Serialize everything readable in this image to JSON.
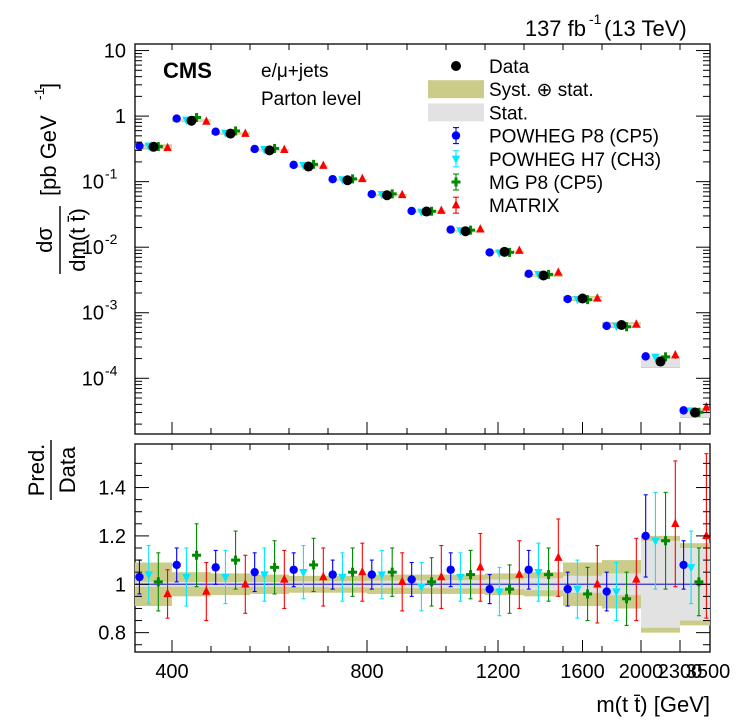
{
  "header": {
    "lumi": "137 fb",
    "lumi_exp": "-1",
    "energy": " (13 TeV)"
  },
  "labels": {
    "cms": "CMS",
    "channel": "e/μ+jets",
    "level": "Parton level",
    "yaxis_top_num": "dσ",
    "yaxis_top_den": "dm(t t̄)",
    "yaxis_top_unit_a": "[pb GeV",
    "yaxis_top_unit_exp": "-1",
    "yaxis_top_unit_b": "]",
    "yaxis_ratio_num": "Pred.",
    "yaxis_ratio_den": "Data",
    "xaxis": "m(t t̄) [GeV]"
  },
  "legend": [
    {
      "label": "Data",
      "marker": "circle",
      "color": "#000000"
    },
    {
      "label": "Syst. ⊕ stat.",
      "marker": "box",
      "color": "#cccc8a"
    },
    {
      "label": "Stat.",
      "marker": "box",
      "color": "#e2e2e2"
    },
    {
      "label": "POWHEG P8 (CP5)",
      "marker": "circle",
      "color": "#0000ff"
    },
    {
      "label": "POWHEG H7 (CH3)",
      "marker": "triangle-down",
      "color": "#00e8ff"
    },
    {
      "label": "MG P8 (CP5)",
      "marker": "cross",
      "color": "#008800"
    },
    {
      "label": "MATRIX",
      "marker": "triangle-up",
      "color": "#ff0000"
    }
  ],
  "chart_data": {
    "type": "scatter",
    "x_ticks": [
      "400",
      "800",
      "1200",
      "1600",
      "2000",
      "2300",
      "3500"
    ],
    "y_ticks_top": [
      {
        "base": "10",
        "exp": "-4"
      },
      {
        "base": "10",
        "exp": "-3"
      },
      {
        "base": "10",
        "exp": "-2"
      },
      {
        "base": "10",
        "exp": "-1"
      },
      {
        "base": "1",
        "exp": ""
      },
      {
        "base": "10",
        "exp": ""
      }
    ],
    "y_ticks_ratio": [
      "0.8",
      "1",
      "1.2",
      "1.4"
    ],
    "ylim_ratio": [
      0.72,
      1.58
    ],
    "ylim_top_log10": [
      -4.85,
      1.1
    ],
    "bins": [
      {
        "lo": 250,
        "hi": 400,
        "data": 0.34,
        "syst": 0.09,
        "stat": 0.01
      },
      {
        "lo": 400,
        "hi": 480,
        "data": 0.85,
        "syst": 0.05,
        "stat": 0.01
      },
      {
        "lo": 480,
        "hi": 560,
        "data": 0.54,
        "syst": 0.045,
        "stat": 0.01
      },
      {
        "lo": 560,
        "hi": 640,
        "data": 0.3,
        "syst": 0.04,
        "stat": 0.01
      },
      {
        "lo": 640,
        "hi": 720,
        "data": 0.17,
        "syst": 0.035,
        "stat": 0.012
      },
      {
        "lo": 720,
        "hi": 800,
        "data": 0.105,
        "syst": 0.035,
        "stat": 0.013
      },
      {
        "lo": 800,
        "hi": 900,
        "data": 0.062,
        "syst": 0.04,
        "stat": 0.015
      },
      {
        "lo": 900,
        "hi": 1000,
        "data": 0.035,
        "syst": 0.04,
        "stat": 0.016
      },
      {
        "lo": 1000,
        "hi": 1150,
        "data": 0.0175,
        "syst": 0.04,
        "stat": 0.017
      },
      {
        "lo": 1150,
        "hi": 1300,
        "data": 0.0085,
        "syst": 0.045,
        "stat": 0.02
      },
      {
        "lo": 1300,
        "hi": 1500,
        "data": 0.0037,
        "syst": 0.05,
        "stat": 0.025
      },
      {
        "lo": 1500,
        "hi": 1700,
        "data": 0.00165,
        "syst": 0.09,
        "stat": 0.035
      },
      {
        "lo": 1700,
        "hi": 2000,
        "data": 0.00065,
        "syst": 0.1,
        "stat": 0.045
      },
      {
        "lo": 2000,
        "hi": 2300,
        "data": 0.00018,
        "syst": 0.2,
        "stat": 0.18
      },
      {
        "lo": 2300,
        "hi": 3500,
        "data": 3e-05,
        "syst": 0.17,
        "stat": 0.15
      }
    ],
    "series": [
      {
        "name": "POWHEG P8 (CP5)",
        "marker": "circle",
        "color": "#0000ff",
        "ratio": [
          1.03,
          1.08,
          1.07,
          1.05,
          1.06,
          1.04,
          1.04,
          1.02,
          1.06,
          0.98,
          1.06,
          0.98,
          0.97,
          1.2,
          1.08
        ],
        "err": [
          0.07,
          0.07,
          0.07,
          0.08,
          0.07,
          0.06,
          0.06,
          0.07,
          0.07,
          0.06,
          0.08,
          0.07,
          0.08,
          0.17,
          0.1
        ]
      },
      {
        "name": "POWHEG H7 (CH3)",
        "marker": "triangle-down",
        "color": "#00e8ff",
        "ratio": [
          1.04,
          1.03,
          1.03,
          1.04,
          1.05,
          1.03,
          1.04,
          0.99,
          1.03,
          0.97,
          1.05,
          0.98,
          0.97,
          1.18,
          1.07
        ],
        "err": [
          0.12,
          0.12,
          0.11,
          0.11,
          0.11,
          0.1,
          0.1,
          0.1,
          0.1,
          0.1,
          0.12,
          0.12,
          0.12,
          0.2,
          0.15
        ]
      },
      {
        "name": "MG P8 (CP5)",
        "marker": "cross",
        "color": "#008800",
        "ratio": [
          1.01,
          1.12,
          1.1,
          1.07,
          1.08,
          1.05,
          1.05,
          1.01,
          1.04,
          0.98,
          1.04,
          0.96,
          0.94,
          1.18,
          1.01
        ],
        "err": [
          0.12,
          0.13,
          0.12,
          0.11,
          0.11,
          0.1,
          0.1,
          0.1,
          0.1,
          0.1,
          0.11,
          0.11,
          0.11,
          0.2,
          0.14
        ]
      },
      {
        "name": "MATRIX",
        "marker": "triangle-up",
        "color": "#ff0000",
        "ratio": [
          0.96,
          0.97,
          1.0,
          1.02,
          1.03,
          1.05,
          1.01,
          1.03,
          1.07,
          1.04,
          1.11,
          1.0,
          1.02,
          1.25,
          1.2
        ],
        "err": [
          0.1,
          0.12,
          0.12,
          0.12,
          0.12,
          0.12,
          0.12,
          0.13,
          0.14,
          0.14,
          0.16,
          0.16,
          0.17,
          0.26,
          0.34
        ]
      }
    ]
  }
}
